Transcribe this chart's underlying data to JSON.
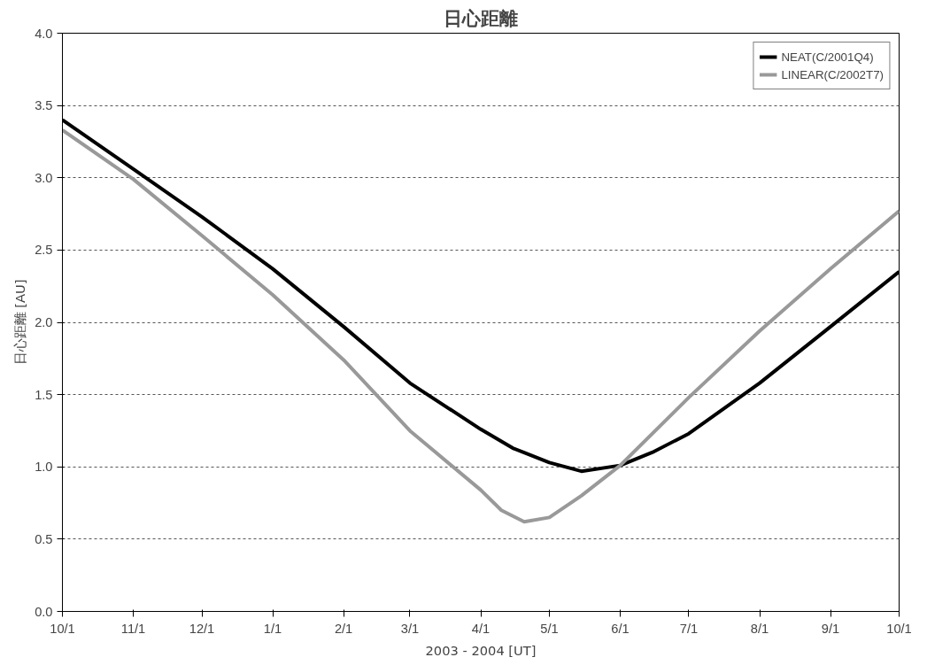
{
  "chart_data": {
    "type": "line",
    "title": "日心距離",
    "xlabel": "2003 - 2004 [UT]",
    "ylabel": "日心距離 [AU]",
    "series": [
      {
        "name": "NEAT(C/2001Q4)",
        "color": "#000000",
        "x": [
          "2003-10-01",
          "2003-11-01",
          "2003-12-01",
          "2004-01-01",
          "2004-02-01",
          "2004-03-01",
          "2004-04-01",
          "2004-04-15",
          "2004-05-01",
          "2004-05-15",
          "2004-06-01",
          "2004-06-15",
          "2004-07-01",
          "2004-08-01",
          "2004-09-01",
          "2004-10-01"
        ],
        "values": [
          3.4,
          3.06,
          2.73,
          2.37,
          1.97,
          1.58,
          1.26,
          1.13,
          1.03,
          0.97,
          1.01,
          1.1,
          1.23,
          1.58,
          1.97,
          2.35
        ]
      },
      {
        "name": "LINEAR(C/2002T7)",
        "color": "#999999",
        "x": [
          "2003-10-01",
          "2003-11-01",
          "2003-12-01",
          "2004-01-01",
          "2004-02-01",
          "2004-03-01",
          "2004-04-01",
          "2004-04-10",
          "2004-04-20",
          "2004-05-01",
          "2004-05-15",
          "2004-06-01",
          "2004-07-01",
          "2004-08-01",
          "2004-09-01",
          "2004-10-01"
        ],
        "values": [
          3.33,
          2.99,
          2.6,
          2.19,
          1.74,
          1.25,
          0.84,
          0.7,
          0.62,
          0.65,
          0.8,
          1.01,
          1.48,
          1.94,
          2.37,
          2.77
        ]
      }
    ],
    "xlim": [
      "2003-10-01",
      "2004-10-01"
    ],
    "xticks": [
      {
        "value": "2003-10-01",
        "label": "10/1"
      },
      {
        "value": "2003-11-01",
        "label": "11/1"
      },
      {
        "value": "2003-12-01",
        "label": "12/1"
      },
      {
        "value": "2004-01-01",
        "label": "1/1"
      },
      {
        "value": "2004-02-01",
        "label": "2/1"
      },
      {
        "value": "2004-03-01",
        "label": "3/1"
      },
      {
        "value": "2004-04-01",
        "label": "4/1"
      },
      {
        "value": "2004-05-01",
        "label": "5/1"
      },
      {
        "value": "2004-06-01",
        "label": "6/1"
      },
      {
        "value": "2004-07-01",
        "label": "7/1"
      },
      {
        "value": "2004-08-01",
        "label": "8/1"
      },
      {
        "value": "2004-09-01",
        "label": "9/1"
      },
      {
        "value": "2004-10-01",
        "label": "10/1"
      }
    ],
    "ylim": [
      0,
      4
    ],
    "yticks": [
      {
        "value": 0,
        "label": "0.0"
      },
      {
        "value": 0.5,
        "label": "0.5"
      },
      {
        "value": 1,
        "label": "1.0"
      },
      {
        "value": 1.5,
        "label": "1.5"
      },
      {
        "value": 2,
        "label": "2.0"
      },
      {
        "value": 2.5,
        "label": "2.5"
      },
      {
        "value": 3,
        "label": "3.0"
      },
      {
        "value": 3.5,
        "label": "3.5"
      },
      {
        "value": 4,
        "label": "4.0"
      }
    ],
    "grid": "y",
    "legend": "top right",
    "marker": "none",
    "line_style": "solid"
  }
}
